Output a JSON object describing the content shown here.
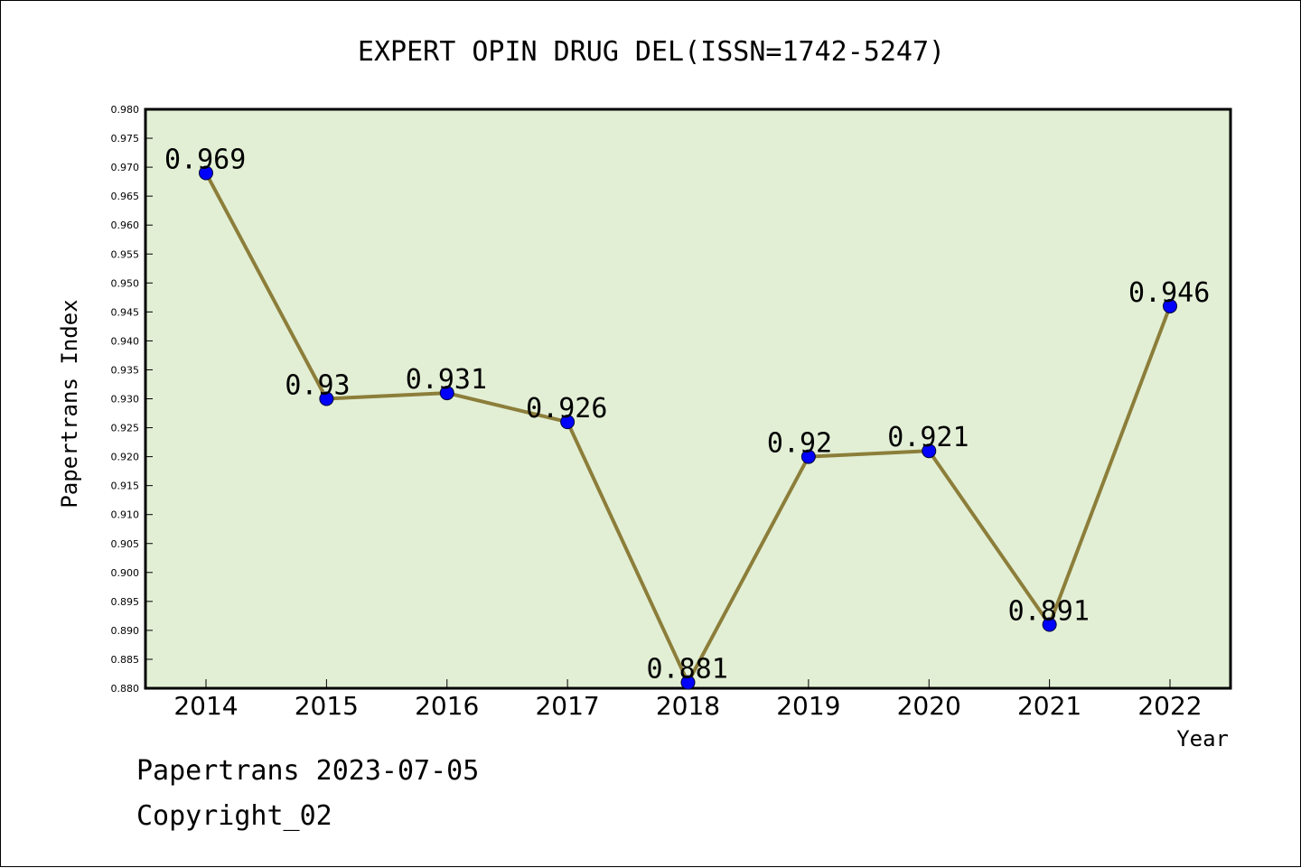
{
  "chart_data": {
    "type": "line",
    "title": "EXPERT OPIN DRUG DEL(ISSN=1742-5247)",
    "xlabel": "Year",
    "ylabel": "Papertrans Index",
    "categories": [
      "2014",
      "2015",
      "2016",
      "2017",
      "2018",
      "2019",
      "2020",
      "2021",
      "2022"
    ],
    "series": [
      {
        "values": [
          0.969,
          0.93,
          0.931,
          0.926,
          0.881,
          0.92,
          0.921,
          0.891,
          0.946
        ]
      }
    ],
    "data_labels": [
      "0.969",
      "0.93",
      "0.931",
      "0.926",
      "0.881",
      "0.92",
      "0.921",
      "0.891",
      "0.946"
    ],
    "ylim": [
      0.88,
      0.98
    ],
    "yticks": [
      "0.880",
      "0.885",
      "0.890",
      "0.895",
      "0.900",
      "0.905",
      "0.910",
      "0.915",
      "0.920",
      "0.925",
      "0.930",
      "0.935",
      "0.940",
      "0.945",
      "0.950",
      "0.955",
      "0.960",
      "0.965",
      "0.970",
      "0.975",
      "0.980"
    ],
    "grid": false,
    "colors": {
      "plot_background": "#e2efd5",
      "line": "#8c7e3a",
      "marker": "#0000ff"
    }
  },
  "footer": {
    "line1": "Papertrans 2023-07-05",
    "line2": "Copyright_02"
  }
}
